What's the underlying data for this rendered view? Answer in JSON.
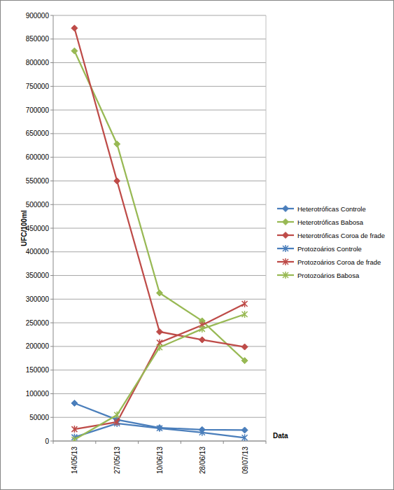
{
  "chart_data": {
    "type": "line",
    "y_label": "UFC/100ml",
    "x_label": "Data",
    "categories": [
      "14/05/13",
      "27/05/13",
      "10/06/13",
      "28/06/13",
      "09/07/13"
    ],
    "ylim": [
      0,
      900000
    ],
    "yticks": [
      0,
      50000,
      100000,
      150000,
      200000,
      250000,
      300000,
      350000,
      400000,
      450000,
      500000,
      550000,
      600000,
      650000,
      700000,
      750000,
      800000,
      850000,
      900000
    ],
    "grid": true,
    "legend": "right",
    "series": [
      {
        "name": "Heterotróficas Controle",
        "color": "#4a7ebb",
        "marker": "diamond",
        "values": [
          80000,
          45000,
          28000,
          24000,
          23000
        ]
      },
      {
        "name": "Heterotróficas Babosa",
        "color": "#98b954",
        "marker": "diamond",
        "values": [
          825000,
          628000,
          313000,
          254000,
          170000
        ]
      },
      {
        "name": "Heterotróficas Coroa de frade",
        "color": "#be4b48",
        "marker": "diamond",
        "values": [
          873000,
          550000,
          231000,
          214000,
          199000
        ]
      },
      {
        "name": "Protozoários Controle",
        "color": "#4a7ebb",
        "marker": "x",
        "values": [
          8000,
          37000,
          27000,
          18000,
          7000
        ]
      },
      {
        "name": "Protozoários Coroa de frade",
        "color": "#be4b48",
        "marker": "x",
        "values": [
          25000,
          40000,
          208000,
          245000,
          290000
        ]
      },
      {
        "name": "Protozoários Babosa",
        "color": "#98b954",
        "marker": "x",
        "values": [
          3000,
          55000,
          198000,
          237000,
          268000
        ]
      }
    ]
  }
}
